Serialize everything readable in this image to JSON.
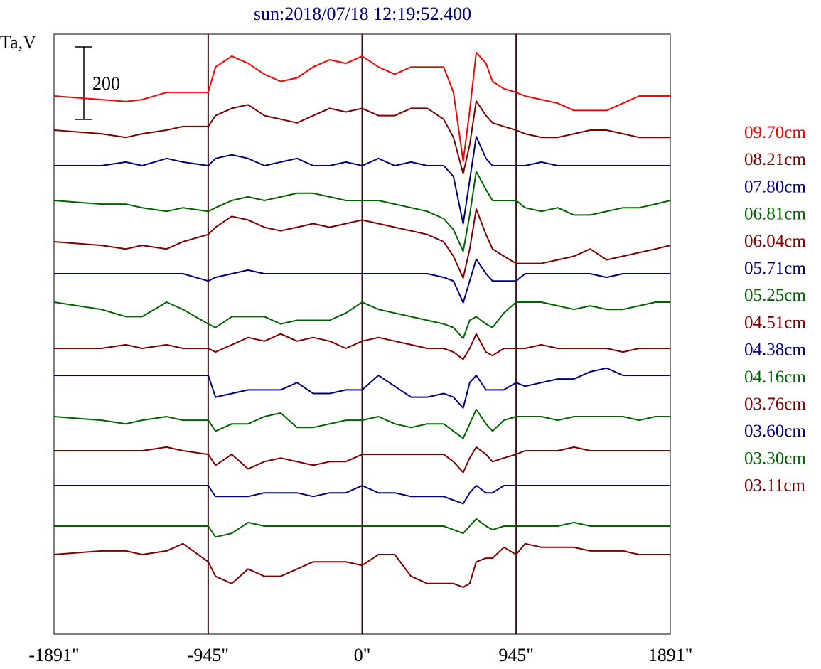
{
  "chart_data": {
    "type": "line",
    "title": "sun:2018/07/18 12:19:52.400",
    "ylabel": "Ta,V",
    "scale_bar_label": "200",
    "xlim": [
      -1891,
      1891
    ],
    "x_ticks": [
      {
        "value": -1891,
        "label": "-1891\""
      },
      {
        "value": -945,
        "label": "-945\""
      },
      {
        "value": 0,
        "label": "0\""
      },
      {
        "value": 945,
        "label": "945\""
      },
      {
        "value": 1891,
        "label": "1891\""
      }
    ],
    "vertical_lines": [
      -945,
      0,
      945
    ],
    "grid": false,
    "legend_placement": "right",
    "x": [
      -1891,
      -1600,
      -1450,
      -1350,
      -1200,
      -1100,
      -945,
      -900,
      -800,
      -700,
      -600,
      -500,
      -400,
      -300,
      -200,
      -100,
      0,
      100,
      200,
      300,
      400,
      500,
      560,
      620,
      660,
      700,
      760,
      800,
      870,
      945,
      1000,
      1100,
      1200,
      1300,
      1400,
      1500,
      1600,
      1700,
      1800,
      1891
    ],
    "series": [
      {
        "name": "09.70cm",
        "color": "#ff0000",
        "values": [
          0,
          -10,
          -15,
          -10,
          10,
          10,
          10,
          80,
          110,
          90,
          60,
          40,
          50,
          80,
          100,
          90,
          110,
          80,
          60,
          80,
          80,
          80,
          10,
          -180,
          -40,
          120,
          90,
          40,
          20,
          10,
          0,
          -10,
          -20,
          -40,
          -40,
          -40,
          -20,
          0,
          0,
          0
        ]
      },
      {
        "name": "08.21cm",
        "color": "#800000",
        "values": [
          0,
          -10,
          -20,
          -10,
          0,
          10,
          10,
          40,
          60,
          70,
          40,
          30,
          20,
          40,
          60,
          50,
          60,
          40,
          40,
          60,
          60,
          30,
          -20,
          -120,
          -40,
          80,
          40,
          20,
          10,
          0,
          -10,
          -20,
          -20,
          -10,
          0,
          0,
          -10,
          -20,
          -20,
          -20
        ]
      },
      {
        "name": "07.80cm",
        "color": "#000080",
        "values": [
          0,
          0,
          10,
          0,
          20,
          10,
          0,
          20,
          30,
          20,
          0,
          10,
          20,
          0,
          0,
          10,
          0,
          20,
          0,
          10,
          0,
          0,
          -30,
          -160,
          -40,
          80,
          20,
          0,
          0,
          0,
          0,
          10,
          0,
          0,
          0,
          0,
          0,
          0,
          0,
          0
        ]
      },
      {
        "name": "06.81cm",
        "color": "#006400",
        "values": [
          0,
          -10,
          -10,
          -20,
          -30,
          -20,
          -30,
          -20,
          0,
          10,
          0,
          10,
          20,
          20,
          10,
          0,
          0,
          0,
          -10,
          -20,
          -30,
          -50,
          -80,
          -140,
          -40,
          80,
          30,
          0,
          0,
          0,
          -20,
          -30,
          -20,
          -40,
          -40,
          -30,
          -20,
          -20,
          -10,
          0
        ]
      },
      {
        "name": "06.04cm",
        "color": "#800000",
        "values": [
          0,
          -10,
          -20,
          -10,
          -20,
          0,
          20,
          40,
          70,
          60,
          40,
          30,
          40,
          50,
          40,
          50,
          60,
          50,
          40,
          30,
          20,
          0,
          -40,
          -100,
          -20,
          90,
          20,
          -20,
          -40,
          -60,
          -60,
          -60,
          -50,
          -40,
          -20,
          -50,
          -40,
          -30,
          -20,
          -10
        ]
      },
      {
        "name": "05.71cm",
        "color": "#000080",
        "values": [
          0,
          0,
          0,
          0,
          0,
          0,
          -20,
          -10,
          0,
          10,
          0,
          0,
          0,
          0,
          0,
          0,
          0,
          0,
          0,
          0,
          0,
          -10,
          -20,
          -80,
          -20,
          40,
          0,
          -20,
          -20,
          -20,
          0,
          0,
          0,
          0,
          0,
          -10,
          0,
          0,
          0,
          0
        ]
      },
      {
        "name": "05.25cm",
        "color": "#006400",
        "values": [
          0,
          -20,
          -40,
          -40,
          0,
          -20,
          -60,
          -70,
          -40,
          -40,
          -40,
          -60,
          -50,
          -50,
          -50,
          -30,
          0,
          -20,
          -30,
          -40,
          -50,
          -60,
          -70,
          -100,
          -50,
          -40,
          -60,
          -70,
          -30,
          0,
          0,
          0,
          -10,
          -20,
          -10,
          -20,
          -20,
          -10,
          0,
          0
        ]
      },
      {
        "name": "04.51cm",
        "color": "#800000",
        "values": [
          0,
          0,
          10,
          0,
          10,
          0,
          0,
          -10,
          10,
          30,
          20,
          40,
          20,
          30,
          20,
          0,
          20,
          30,
          20,
          10,
          0,
          0,
          -10,
          -30,
          0,
          40,
          -10,
          -20,
          0,
          0,
          0,
          10,
          0,
          0,
          0,
          0,
          -10,
          0,
          0,
          0
        ]
      },
      {
        "name": "04.38cm",
        "color": "#000080",
        "values": [
          0,
          0,
          0,
          0,
          0,
          0,
          0,
          -60,
          -50,
          -40,
          -40,
          -40,
          -20,
          -50,
          -50,
          -40,
          -40,
          0,
          -30,
          -60,
          -60,
          -50,
          -60,
          -90,
          -20,
          0,
          -40,
          -40,
          -40,
          -20,
          -30,
          -20,
          -10,
          -10,
          10,
          20,
          0,
          0,
          0,
          0
        ]
      },
      {
        "name": "04.16cm",
        "color": "#006400",
        "values": [
          0,
          -10,
          -20,
          -10,
          0,
          -10,
          -10,
          -40,
          -20,
          -20,
          0,
          10,
          -30,
          -30,
          -20,
          -10,
          -10,
          0,
          -20,
          -30,
          -20,
          -20,
          -40,
          -60,
          -20,
          20,
          -20,
          -40,
          -10,
          0,
          0,
          0,
          -10,
          0,
          0,
          0,
          0,
          -10,
          0,
          0
        ]
      },
      {
        "name": "03.76cm",
        "color": "#800000",
        "values": [
          0,
          0,
          0,
          0,
          10,
          0,
          -10,
          -40,
          -10,
          -50,
          -30,
          -20,
          -30,
          -40,
          -30,
          -30,
          -10,
          -10,
          -10,
          -10,
          -10,
          -10,
          -30,
          -60,
          -20,
          10,
          -10,
          -30,
          -20,
          -10,
          0,
          0,
          0,
          10,
          0,
          0,
          0,
          0,
          0,
          0
        ]
      },
      {
        "name": "03.60cm",
        "color": "#000080",
        "values": [
          0,
          0,
          0,
          0,
          0,
          0,
          0,
          -30,
          -30,
          -30,
          -20,
          -20,
          -20,
          -30,
          -20,
          -20,
          0,
          -20,
          -20,
          -30,
          -30,
          -30,
          -40,
          -50,
          -20,
          0,
          -20,
          -20,
          0,
          0,
          0,
          0,
          0,
          0,
          0,
          0,
          0,
          0,
          0,
          0
        ]
      },
      {
        "name": "03.30cm",
        "color": "#006400",
        "values": [
          0,
          0,
          0,
          0,
          0,
          0,
          0,
          -30,
          -20,
          10,
          0,
          0,
          0,
          0,
          0,
          0,
          0,
          0,
          0,
          0,
          0,
          0,
          -10,
          -20,
          0,
          20,
          0,
          -10,
          0,
          0,
          0,
          0,
          0,
          10,
          0,
          0,
          0,
          0,
          0,
          0
        ]
      },
      {
        "name": "03.11cm",
        "color": "#800000",
        "values": [
          0,
          10,
          10,
          0,
          10,
          30,
          -20,
          -60,
          -80,
          -40,
          -60,
          -60,
          -40,
          -20,
          -20,
          -20,
          -30,
          0,
          0,
          -60,
          -80,
          -80,
          -80,
          -90,
          -80,
          -20,
          -10,
          -10,
          20,
          0,
          30,
          20,
          20,
          20,
          10,
          10,
          10,
          0,
          0,
          0
        ]
      }
    ]
  }
}
